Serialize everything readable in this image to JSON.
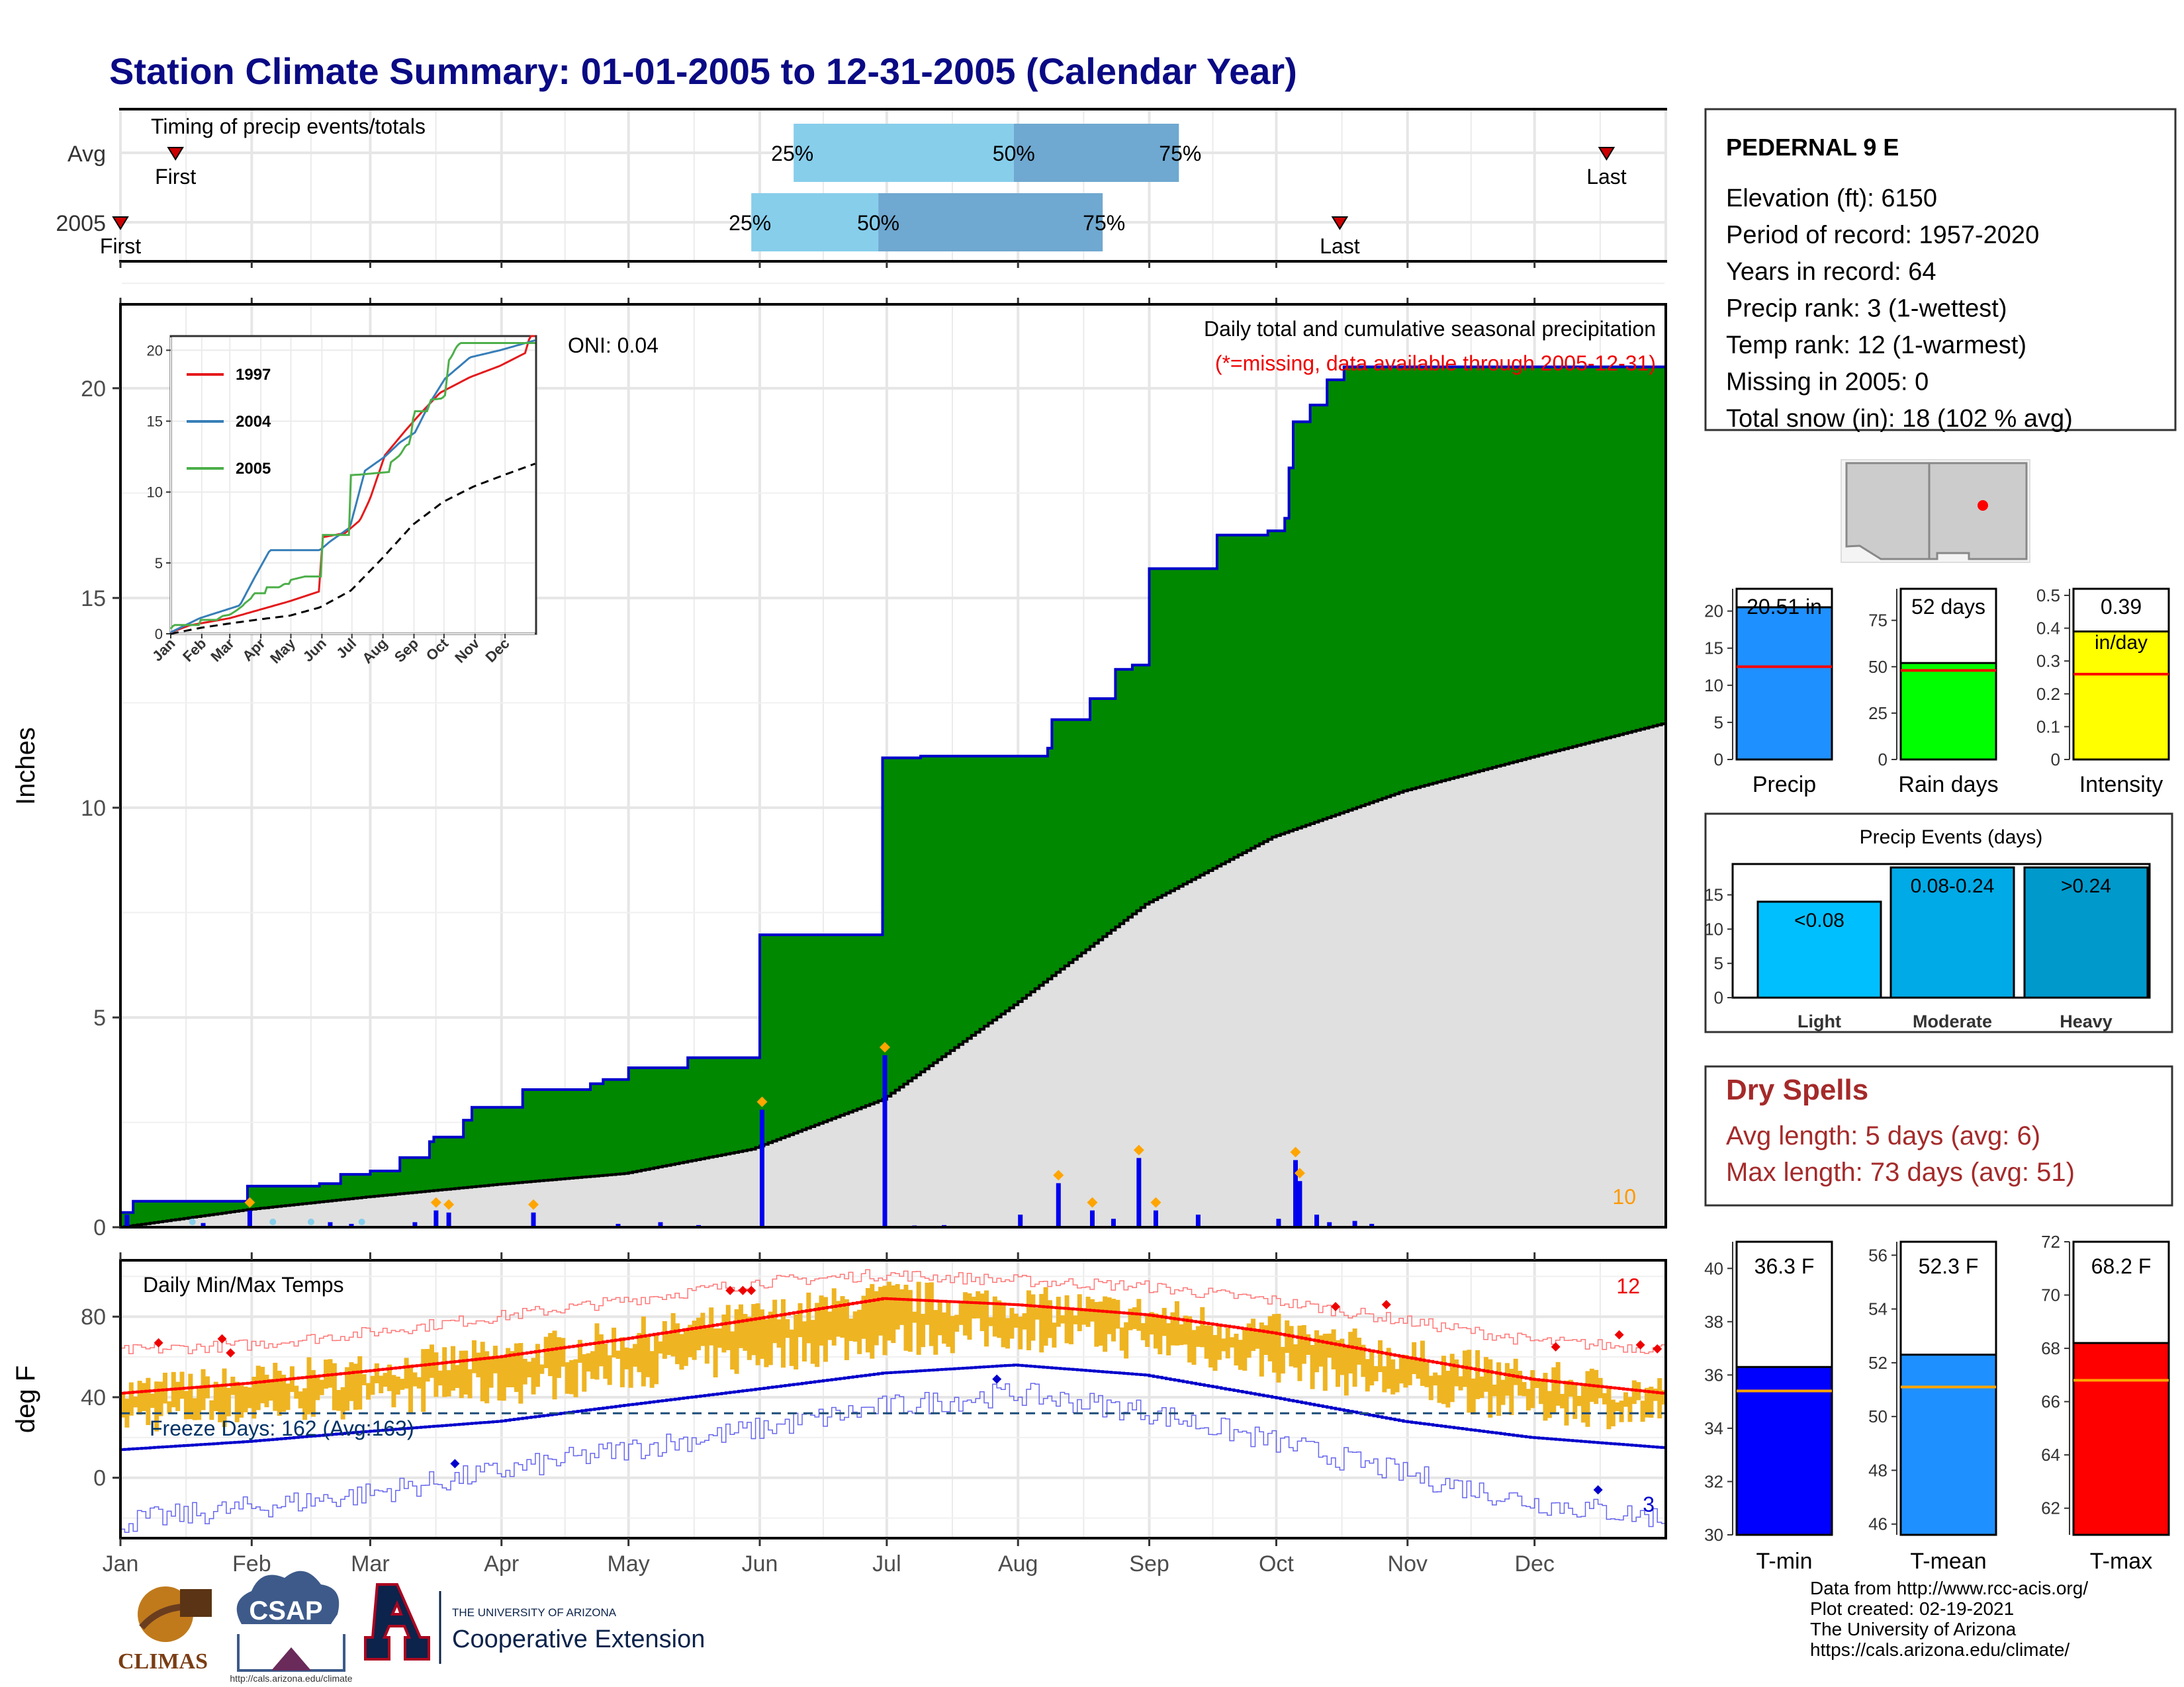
{
  "title": "Station Climate Summary: 01-01-2005 to 12-31-2005 (Calendar Year)",
  "colors": {
    "title": "#0a0a85",
    "cumulative_fill": "#008800",
    "cumulative_line": "#0000cc",
    "avg_fill": "#e0e0e0",
    "temp_bar": "#eeb422",
    "tmax_line": "#ff0000",
    "tmin_line": "#0000cc",
    "light_blue": "#87ceeb",
    "mid_blue": "#6fa8d0",
    "dry_spells": "#a52a2a"
  },
  "timing_panel": {
    "label": "Timing of precip events/totals",
    "rows": [
      {
        "name": "Avg",
        "first_label": "First",
        "last_label": "Last",
        "first_day": 14,
        "last_day": 352,
        "q25_day": 160,
        "q50_day": 212,
        "q75_day": 251,
        "q25_label": "25%",
        "q50_label": "50%",
        "q75_label": "75%"
      },
      {
        "name": "2005",
        "first_label": "First",
        "last_label": "Last",
        "first_day": 1,
        "last_day": 289,
        "q25_day": 150,
        "q50_day": 180,
        "q75_day": 233,
        "q25_label": "25%",
        "q50_label": "50%",
        "q75_label": "75%"
      }
    ]
  },
  "x_months": [
    "Jan",
    "Feb",
    "Mar",
    "Apr",
    "May",
    "Jun",
    "Jul",
    "Aug",
    "Sep",
    "Oct",
    "Nov",
    "Dec"
  ],
  "precip_panel": {
    "ylabel": "Inches",
    "y_ticks": [
      0,
      5,
      10,
      15,
      20
    ],
    "ylim": [
      0,
      22
    ],
    "oni": "ONI: 0.04",
    "title": "Daily total and cumulative seasonal precipitation",
    "subtitle": "(*=missing, data available through 2005-12-31)",
    "corner_count": "10"
  },
  "inset": {
    "legend": [
      {
        "label": "1997",
        "color": "#e41a1c"
      },
      {
        "label": "2004",
        "color": "#377eb8"
      },
      {
        "label": "2005",
        "color": "#4daf4a"
      }
    ],
    "y_ticks": [
      0,
      5,
      10,
      15,
      20
    ],
    "x_labels": [
      "Jan",
      "Feb",
      "Mar",
      "Apr",
      "May",
      "Jun",
      "Jul",
      "Aug",
      "Sep",
      "Oct",
      "Nov",
      "Dec"
    ]
  },
  "temp_panel": {
    "label": "Daily Min/Max Temps",
    "ylabel": "deg F",
    "y_ticks": [
      0,
      40,
      80
    ],
    "freeze": "Freeze Days: 162 (Avg:163)",
    "top_count": "12",
    "bottom_count": "3"
  },
  "station": {
    "name": "PEDERNAL 9 E",
    "lines": [
      "Elevation (ft): 6150",
      "Period of record: 1957-2020",
      "Years in record: 64",
      "Precip rank: 3 (1-wettest)",
      "Temp rank: 12 (1-warmest)",
      "Missing in 2005: 0",
      "Total snow (in): 18 (102 % avg)"
    ]
  },
  "summary_bars": [
    {
      "name": "Precip",
      "value_label": "20.51 in",
      "value": 20.51,
      "avg": 12.5,
      "max": 23,
      "ticks": [
        0,
        5,
        10,
        15,
        20
      ],
      "color": "#1e90ff"
    },
    {
      "name": "Rain days",
      "value_label": "52 days",
      "value": 52,
      "avg": 48,
      "max": 92,
      "ticks": [
        0,
        25,
        50,
        75
      ],
      "color": "#00ff00"
    },
    {
      "name": "Intensity",
      "value_label": "0.39",
      "unit_label": "in/day",
      "value": 0.39,
      "avg": 0.26,
      "max": 0.52,
      "ticks": [
        0.0,
        0.1,
        0.2,
        0.3,
        0.4,
        0.5
      ],
      "color": "#ffff00"
    }
  ],
  "precip_events": {
    "title": "Precip Events (days)",
    "y_ticks": [
      0,
      5,
      10,
      15
    ],
    "ymax": 19.5,
    "bars": [
      {
        "category": "Light",
        "label": "<0.08",
        "value": 14,
        "color": "#00bfff"
      },
      {
        "category": "Moderate",
        "label": "0.08-0.24",
        "value": 19,
        "color": "#00aae6"
      },
      {
        "category": "Heavy",
        "label": ">0.24",
        "value": 19,
        "color": "#0099cc"
      }
    ]
  },
  "dry_spells": {
    "title": "Dry Spells",
    "avg": "Avg length: 5 days (avg: 6)",
    "max": "Max length: 73 days (avg: 51)"
  },
  "temp_bars": [
    {
      "name": "T-min",
      "value_label": "36.3 F",
      "value": 36.3,
      "avg": 35.4,
      "ymin": 30,
      "ymax": 41,
      "ticks": [
        30,
        32,
        34,
        36,
        38,
        40
      ],
      "color": "#0000ff"
    },
    {
      "name": "T-mean",
      "value_label": "52.3 F",
      "value": 52.3,
      "avg": 51.1,
      "ymin": 45.6,
      "ymax": 56.5,
      "ticks": [
        46,
        48,
        50,
        52,
        54,
        56
      ],
      "color": "#1e90ff"
    },
    {
      "name": "T-max",
      "value_label": "68.2 F",
      "value": 68.2,
      "avg": 66.8,
      "ymin": 61,
      "ymax": 72,
      "ticks": [
        62,
        64,
        66,
        68,
        70,
        72
      ],
      "color": "#ff0000"
    }
  ],
  "logos": {
    "climas": "CLIMAS",
    "csap": "CSAP",
    "csap_url": "http://cals.arizona.edu/climate",
    "ua_small": "THE UNIVERSITY OF ARIZONA",
    "ua_big": "Cooperative Extension"
  },
  "footer": {
    "line1": "Data from http://www.rcc-acis.org/",
    "line2": "Plot created: 02-19-2021",
    "line3": "The University of Arizona",
    "line4": "https://cals.arizona.edu/climate/"
  },
  "chart_data": [
    {
      "type": "area",
      "title": "Daily total and cumulative seasonal precipitation",
      "ylabel": "Inches",
      "ylim": [
        0,
        22
      ],
      "x_unit": "day of year 2005",
      "cumulative_2005": [
        [
          1,
          0.35
        ],
        [
          4,
          0.62
        ],
        [
          29,
          0.62
        ],
        [
          30,
          0.62
        ],
        [
          31,
          0.98
        ],
        [
          47,
          0.98
        ],
        [
          48,
          1.04
        ],
        [
          53,
          1.26
        ],
        [
          60,
          1.34
        ],
        [
          67,
          1.66
        ],
        [
          74,
          2.04
        ],
        [
          75,
          2.15
        ],
        [
          82,
          2.55
        ],
        [
          84,
          2.86
        ],
        [
          95,
          2.86
        ],
        [
          96,
          3.28
        ],
        [
          110,
          3.28
        ],
        [
          112,
          3.42
        ],
        [
          115,
          3.52
        ],
        [
          120,
          3.52
        ],
        [
          121,
          3.8
        ],
        [
          135,
          4.04
        ],
        [
          151,
          4.04
        ],
        [
          152,
          6.97
        ],
        [
          180,
          6.97
        ],
        [
          181,
          11.19
        ],
        [
          190,
          11.23
        ],
        [
          220,
          11.42
        ],
        [
          221,
          12.1
        ],
        [
          230,
          12.6
        ],
        [
          236,
          13.3
        ],
        [
          240,
          13.4
        ],
        [
          244,
          15.7
        ],
        [
          258,
          15.7
        ],
        [
          260,
          16.5
        ],
        [
          272,
          16.6
        ],
        [
          276,
          16.9
        ],
        [
          277,
          18.1
        ],
        [
          278,
          19.2
        ],
        [
          282,
          19.6
        ],
        [
          286,
          20.2
        ],
        [
          290,
          20.51
        ],
        [
          365,
          20.51
        ]
      ],
      "average_cumulative": [
        [
          1,
          0.0
        ],
        [
          31,
          0.42
        ],
        [
          59,
          0.72
        ],
        [
          90,
          1.02
        ],
        [
          120,
          1.28
        ],
        [
          150,
          1.86
        ],
        [
          181,
          3.05
        ],
        [
          212,
          5.3
        ],
        [
          243,
          7.7
        ],
        [
          273,
          9.3
        ],
        [
          304,
          10.4
        ],
        [
          334,
          11.2
        ],
        [
          365,
          12.0
        ]
      ],
      "daily_spikes": [
        [
          2,
          0.3
        ],
        [
          20,
          0.1
        ],
        [
          31,
          0.4
        ],
        [
          50,
          0.12
        ],
        [
          55,
          0.08
        ],
        [
          70,
          0.12
        ],
        [
          75,
          0.4
        ],
        [
          78,
          0.35
        ],
        [
          98,
          0.35
        ],
        [
          118,
          0.08
        ],
        [
          128,
          0.12
        ],
        [
          137,
          0.05
        ],
        [
          152,
          2.8
        ],
        [
          181,
          4.1
        ],
        [
          188,
          0.04
        ],
        [
          195,
          0.05
        ],
        [
          213,
          0.3
        ],
        [
          222,
          1.05
        ],
        [
          230,
          0.4
        ],
        [
          235,
          0.2
        ],
        [
          241,
          1.65
        ],
        [
          245,
          0.4
        ],
        [
          255,
          0.3
        ],
        [
          274,
          0.2
        ],
        [
          278,
          1.6
        ],
        [
          279,
          1.1
        ],
        [
          283,
          0.3
        ],
        [
          286,
          0.12
        ],
        [
          292,
          0.15
        ],
        [
          296,
          0.08
        ]
      ]
    },
    {
      "type": "line",
      "title": "Daily Min/Max Temps",
      "ylabel": "deg F",
      "ylim": [
        -30,
        108
      ],
      "avg_max": [
        [
          1,
          42
        ],
        [
          31,
          47
        ],
        [
          59,
          53
        ],
        [
          90,
          60
        ],
        [
          120,
          69
        ],
        [
          151,
          79
        ],
        [
          181,
          89
        ],
        [
          212,
          86
        ],
        [
          243,
          81
        ],
        [
          273,
          72
        ],
        [
          304,
          60
        ],
        [
          334,
          49
        ],
        [
          365,
          42
        ]
      ],
      "avg_min": [
        [
          1,
          14
        ],
        [
          31,
          18
        ],
        [
          59,
          23
        ],
        [
          90,
          28
        ],
        [
          120,
          36
        ],
        [
          151,
          44
        ],
        [
          181,
          52
        ],
        [
          212,
          56
        ],
        [
          243,
          51
        ],
        [
          273,
          40
        ],
        [
          304,
          28
        ],
        [
          334,
          20
        ],
        [
          365,
          15
        ]
      ],
      "record_max": [
        [
          1,
          63
        ],
        [
          31,
          66
        ],
        [
          59,
          72
        ],
        [
          90,
          80
        ],
        [
          120,
          88
        ],
        [
          151,
          97
        ],
        [
          181,
          101
        ],
        [
          212,
          98
        ],
        [
          243,
          95
        ],
        [
          273,
          88
        ],
        [
          304,
          78
        ],
        [
          334,
          68
        ],
        [
          365,
          64
        ]
      ],
      "record_min": [
        [
          1,
          -22
        ],
        [
          31,
          -15
        ],
        [
          59,
          -8
        ],
        [
          90,
          3
        ],
        [
          120,
          14
        ],
        [
          151,
          24
        ],
        [
          181,
          35
        ],
        [
          212,
          42
        ],
        [
          243,
          33
        ],
        [
          273,
          18
        ],
        [
          304,
          2
        ],
        [
          334,
          -12
        ],
        [
          365,
          -20
        ]
      ],
      "freeze_line": 32
    },
    {
      "type": "bar",
      "title": "Precip Events (days)",
      "categories": [
        "Light",
        "Moderate",
        "Heavy"
      ],
      "values": [
        14,
        19,
        19
      ]
    }
  ]
}
